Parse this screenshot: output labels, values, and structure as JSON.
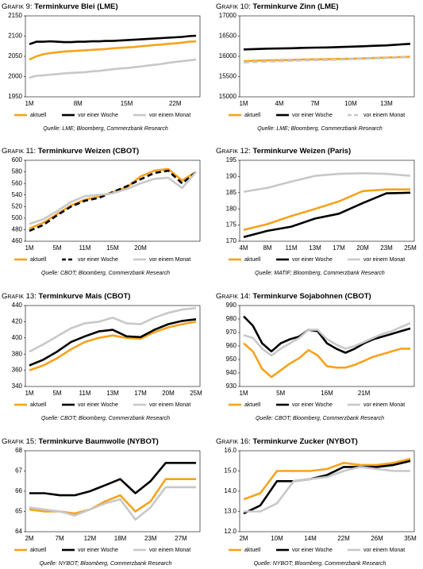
{
  "chart_data": [
    {
      "type": "line",
      "figure_label": "Grafik 9:",
      "title": "Terminkurve Blei (LME)",
      "source": "Quelle: LME; Bloomberg, Commerzbank Research",
      "categories": [
        "1M",
        null,
        null,
        null,
        null,
        null,
        null,
        "8M",
        null,
        null,
        null,
        null,
        null,
        null,
        "15M",
        null,
        null,
        null,
        null,
        null,
        null,
        "22M",
        null,
        null,
        null
      ],
      "ylim": [
        1950,
        2150
      ],
      "yticks": [
        1950,
        2000,
        2050,
        2100,
        2150
      ],
      "grid": false,
      "series": [
        {
          "name": "aktuell",
          "color": "#f7a21b",
          "values": [
            2042,
            2050,
            2055,
            2058,
            2060,
            2062,
            2063,
            2064,
            2065,
            2066,
            2067,
            2068,
            2070,
            2071,
            2072,
            2073,
            2075,
            2076,
            2078,
            2079,
            2081,
            2082,
            2084,
            2086,
            2087
          ]
        },
        {
          "name": "vor einer Woche",
          "color": "#000000",
          "values": [
            2080,
            2086,
            2086,
            2087,
            2086,
            2085,
            2085,
            2086,
            2086,
            2087,
            2087,
            2088,
            2088,
            2089,
            2090,
            2091,
            2092,
            2093,
            2094,
            2095,
            2096,
            2097,
            2098,
            2100,
            2101
          ]
        },
        {
          "name": "vor einem Monat",
          "color": "#c8c8c8",
          "values": [
            1997,
            2002,
            2003,
            2005,
            2006,
            2008,
            2009,
            2010,
            2011,
            2013,
            2014,
            2016,
            2018,
            2020,
            2021,
            2023,
            2025,
            2027,
            2029,
            2031,
            2034,
            2036,
            2038,
            2040,
            2042
          ]
        }
      ]
    },
    {
      "type": "line",
      "figure_label": "Grafik 10:",
      "title": "Terminkurve Zinn (LME)",
      "source": "Quelle: LME; Bloomberg, Commerzbank Research",
      "categories": [
        "1M",
        null,
        null,
        "4M",
        null,
        null,
        "7M",
        null,
        null,
        "10M",
        null,
        null,
        "13M",
        null,
        null
      ],
      "ylim": [
        15000,
        17000
      ],
      "yticks": [
        15000,
        15500,
        16000,
        16500,
        17000
      ],
      "grid": false,
      "series": [
        {
          "name": "aktuell",
          "color": "#f7a21b",
          "values": [
            15880,
            15890,
            15900,
            15905,
            15910,
            15920,
            15925,
            15930,
            15935,
            15940,
            15950,
            15960,
            15970,
            15980,
            15990
          ]
        },
        {
          "name": "vor einer Woche",
          "color": "#000000",
          "values": [
            16170,
            16180,
            16190,
            16195,
            16200,
            16210,
            16215,
            16220,
            16230,
            16240,
            16250,
            16260,
            16270,
            16290,
            16310
          ]
        },
        {
          "name": "vor einem Monat",
          "color": "#c8c8c8",
          "dashed": true,
          "values": [
            15850,
            15860,
            15870,
            15880,
            15890,
            15900,
            15905,
            15910,
            15920,
            15930,
            15940,
            15950,
            15960,
            15970,
            15980
          ]
        }
      ]
    },
    {
      "type": "line",
      "figure_label": "Grafik 11:",
      "title": "Terminkurve Weizen (CBOT)",
      "source": "Quelle: CBOT; Bloomberg, Commerzbank Research",
      "categories": [
        "1M",
        null,
        "5M",
        null,
        "11M",
        null,
        "15M",
        null,
        "20M",
        null,
        null,
        null,
        null
      ],
      "ylim": [
        460,
        600
      ],
      "yticks": [
        460,
        480,
        500,
        520,
        540,
        560,
        580,
        600
      ],
      "grid": false,
      "series": [
        {
          "name": "aktuell",
          "color": "#f7a21b",
          "values": [
            482,
            492,
            507,
            522,
            532,
            537,
            545,
            553,
            572,
            582,
            585,
            565,
            580
          ]
        },
        {
          "name": "vor einer Woche",
          "color": "#000000",
          "dashed": true,
          "values": [
            478,
            488,
            505,
            520,
            530,
            535,
            545,
            555,
            567,
            578,
            582,
            560,
            580
          ]
        },
        {
          "name": "vor einem Monat",
          "color": "#c8c8c8",
          "values": [
            490,
            498,
            512,
            528,
            538,
            540,
            543,
            550,
            560,
            568,
            570,
            552,
            580
          ]
        }
      ]
    },
    {
      "type": "line",
      "figure_label": "Grafik 12:",
      "title": "Terminkurve Weizen (Paris)",
      "source": "Quelle: MATIF; Bloomberg, Commerzbank Research",
      "categories": [
        "4M",
        "8M",
        "11M",
        "13M",
        "17M",
        "20M",
        "23M",
        "25M"
      ],
      "ylim": [
        170,
        195
      ],
      "yticks": [
        170,
        175,
        180,
        185,
        190,
        195
      ],
      "grid": false,
      "series": [
        {
          "name": "aktuell",
          "color": "#f7a21b",
          "values": [
            173.5,
            175.3,
            177.8,
            180,
            182.3,
            185.5,
            186,
            186
          ]
        },
        {
          "name": "vor einer Woche",
          "color": "#000000",
          "values": [
            171.3,
            173.2,
            174.5,
            177,
            178.5,
            181.8,
            184.8,
            185
          ]
        },
        {
          "name": "vor einem Monat",
          "color": "#c8c8c8",
          "values": [
            185.3,
            186.5,
            188.4,
            190.2,
            190.8,
            191,
            190.8,
            190.2
          ]
        }
      ]
    },
    {
      "type": "line",
      "figure_label": "Grafik 13:",
      "title": "Terminkurve Mais (CBOT)",
      "source": "Quelle: CBOT; Bloomberg, Commerzbank Research",
      "categories": [
        "1M",
        null,
        "5M",
        null,
        "11M",
        null,
        "13M",
        null,
        "17M",
        null,
        "20M",
        null,
        "25M"
      ],
      "ylim": [
        340,
        440
      ],
      "yticks": [
        340,
        360,
        380,
        400,
        420,
        440
      ],
      "grid": false,
      "series": [
        {
          "name": "aktuell",
          "color": "#f7a21b",
          "values": [
            360,
            366,
            375,
            386,
            395,
            400,
            403,
            400,
            399,
            407,
            413,
            417,
            420
          ]
        },
        {
          "name": "vor einer Woche",
          "color": "#000000",
          "values": [
            366,
            373,
            383,
            395,
            402,
            408,
            410,
            402,
            401,
            410,
            417,
            421,
            423
          ]
        },
        {
          "name": "vor einem Monat",
          "color": "#c8c8c8",
          "values": [
            383,
            392,
            402,
            412,
            418,
            420,
            425,
            418,
            417,
            425,
            431,
            435,
            437
          ]
        }
      ]
    },
    {
      "type": "line",
      "figure_label": "Grafik 14:",
      "title": "Terminkurve Sojabohnen (CBOT)",
      "source": "Quelle: CBOT; Bloomberg, Commerzbank Research",
      "categories": [
        "1M",
        null,
        null,
        null,
        "5M",
        null,
        null,
        null,
        null,
        "16M",
        null,
        null,
        null,
        "21M",
        null,
        null,
        null,
        null,
        null
      ],
      "ylim": [
        930,
        990
      ],
      "yticks": [
        930,
        940,
        950,
        960,
        970,
        980,
        990
      ],
      "grid": false,
      "series": [
        {
          "name": "aktuell",
          "color": "#f7a21b",
          "values": [
            962,
            956,
            943,
            937,
            942,
            947,
            951,
            957,
            953,
            945,
            944,
            944,
            946,
            949,
            952,
            954,
            956,
            958,
            958
          ]
        },
        {
          "name": "vor einer Woche",
          "color": "#000000",
          "values": [
            982,
            975,
            962,
            956,
            962,
            965,
            967,
            972,
            971,
            962,
            958,
            955,
            958,
            962,
            965,
            967,
            969,
            971,
            973
          ]
        },
        {
          "name": "vor einem Monat",
          "color": "#c8c8c8",
          "values": [
            968,
            966,
            958,
            953,
            958,
            962,
            966,
            972,
            972,
            965,
            961,
            958,
            960,
            963,
            966,
            969,
            971,
            974,
            977
          ]
        }
      ]
    },
    {
      "type": "line",
      "figure_label": "Grafik 15:",
      "title": "Terminkurve Baumwolle (NYBOT)",
      "source": "Quelle: NYBOT; Bloomberg, Commerzbank Research",
      "categories": [
        "2M",
        null,
        "7M",
        null,
        "12M",
        null,
        "18M",
        null,
        "23M",
        null,
        "27M",
        null
      ],
      "ylim": [
        64,
        68
      ],
      "yticks": [
        64,
        65,
        66,
        67,
        68
      ],
      "grid": false,
      "series": [
        {
          "name": "aktuell",
          "color": "#f7a21b",
          "values": [
            65.1,
            65,
            65,
            64.9,
            65.1,
            65.5,
            65.8,
            65,
            65.5,
            66.6,
            66.6,
            66.6
          ]
        },
        {
          "name": "vor einer Woche",
          "color": "#000000",
          "values": [
            65.9,
            65.9,
            65.8,
            65.8,
            66,
            66.3,
            66.6,
            65.9,
            66.5,
            67.4,
            67.4,
            67.4
          ]
        },
        {
          "name": "vor einem Monat",
          "color": "#c8c8c8",
          "values": [
            65.2,
            65.1,
            65,
            64.8,
            65.1,
            65.4,
            65.6,
            64.6,
            65.2,
            66.2,
            66.2,
            66.2
          ]
        }
      ]
    },
    {
      "type": "line",
      "figure_label": "Grafik 16:",
      "title": "Terminkurve Zucker (NYBOT)",
      "source": "Quelle: NYBOT; Bloomberg, Commerzbank Research",
      "categories": [
        "2M",
        null,
        "10M",
        null,
        "14M",
        null,
        "22M",
        null,
        "26M",
        null,
        "35M"
      ],
      "ylim": [
        12,
        16
      ],
      "yticks": [
        {
          "value": 12,
          "label": "12.0"
        },
        {
          "value": 13,
          "label": "13.0"
        },
        {
          "value": 14,
          "label": "14.0"
        },
        {
          "value": 15,
          "label": "15.0"
        },
        {
          "value": 16,
          "label": "16.0"
        }
      ],
      "grid": false,
      "series": [
        {
          "name": "aktuell",
          "color": "#f7a21b",
          "values": [
            13.6,
            13.9,
            15,
            15,
            15,
            15.1,
            15.4,
            15.3,
            15.3,
            15.4,
            15.6
          ]
        },
        {
          "name": "vor einer Woche",
          "color": "#000000",
          "values": [
            12.9,
            13.3,
            14.5,
            14.5,
            14.6,
            14.8,
            15.2,
            15.2,
            15.2,
            15.3,
            15.5
          ]
        },
        {
          "name": "vor einem Monat",
          "color": "#c8c8c8",
          "values": [
            13,
            13,
            13.4,
            14.5,
            14.6,
            14.7,
            15,
            15.2,
            15.1,
            15,
            15
          ]
        }
      ]
    }
  ]
}
